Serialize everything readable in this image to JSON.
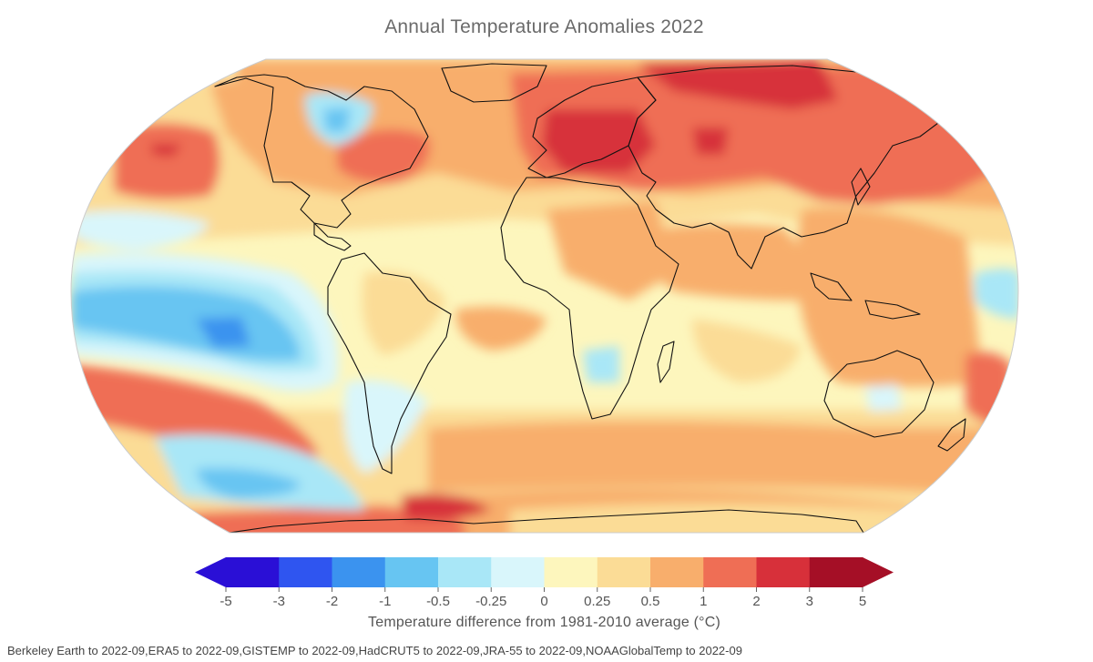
{
  "title": "Annual Temperature Anomalies 2022",
  "colorbar": {
    "label": "Temperature difference from 1981-2010 average (°C)",
    "ticks": [
      "-5",
      "-3",
      "-2",
      "-1",
      "-0.5",
      "-0.25",
      "0",
      "0.25",
      "0.5",
      "1",
      "2",
      "3",
      "5"
    ],
    "colors": [
      "#2a0fd6",
      "#2f55f0",
      "#3b93ef",
      "#67c5f2",
      "#a9e7f7",
      "#d9f6fb",
      "#fdf6bd",
      "#fbdc96",
      "#f8ae6c",
      "#ef6e55",
      "#d7303a",
      "#a50f26"
    ]
  },
  "sources": "Berkeley Earth to 2022-09,ERA5 to 2022-09,GISTEMP to 2022-09,HadCRUT5 to 2022-09,JRA-55 to 2022-09,NOAAGlobalTemp to 2022-09"
}
